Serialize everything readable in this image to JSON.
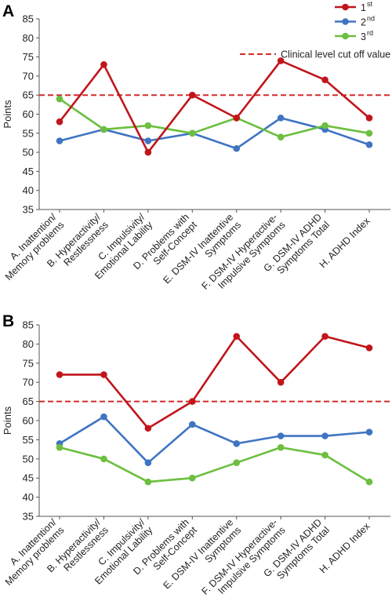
{
  "colors": {
    "series_1": "#c0161b",
    "series_2": "#3f74c2",
    "series_3": "#6cbf3f",
    "cutoff": "#d42a2a",
    "axis": "#555555"
  },
  "legend": {
    "items": [
      {
        "base": "1",
        "sup": "st"
      },
      {
        "base": "2",
        "sup": "nd"
      },
      {
        "base": "3",
        "sup": "rd"
      }
    ],
    "cutoff_label": "Clinical level cut off value"
  },
  "chart_data": [
    {
      "panel": "A",
      "type": "line",
      "ylabel": "Points",
      "ylim": [
        35,
        85
      ],
      "yticks": [
        35,
        40,
        45,
        50,
        55,
        60,
        65,
        70,
        75,
        80,
        85
      ],
      "cutoff": 65,
      "categories": [
        [
          "A. Inattention/",
          "Memory problems"
        ],
        [
          "B. Hyperactivity/",
          "Restlessness"
        ],
        [
          "C. Impulsivity/",
          "Emotional Lability"
        ],
        [
          "D. Problems with",
          "Self-Concept"
        ],
        [
          "E. DSM-IV Inattentive",
          "Symptoms"
        ],
        [
          "F. DSM-IV Hyperactive-",
          "Impulsive Symptoms"
        ],
        [
          "G. DSM-IV ADHD",
          "Symptoms Total"
        ],
        [
          "H. ADHD Index"
        ]
      ],
      "series": [
        {
          "key": "series_1",
          "values": [
            58,
            73,
            50,
            65,
            59,
            74,
            69,
            59
          ]
        },
        {
          "key": "series_2",
          "values": [
            53,
            56,
            53,
            55,
            51,
            59,
            56,
            52
          ]
        },
        {
          "key": "series_3",
          "values": [
            64,
            56,
            57,
            55,
            59,
            54,
            57,
            55
          ]
        }
      ]
    },
    {
      "panel": "B",
      "type": "line",
      "ylabel": "Points",
      "ylim": [
        35,
        85
      ],
      "yticks": [
        35,
        40,
        45,
        50,
        55,
        60,
        65,
        70,
        75,
        80,
        85
      ],
      "cutoff": 65,
      "categories": [
        [
          "A. Inattention/",
          "Memory problems"
        ],
        [
          "B. Hyperactivity/",
          "Restlessness"
        ],
        [
          "C. Impulsivity/",
          "Emotional Lability"
        ],
        [
          "D. Problems with",
          "Self-Concept"
        ],
        [
          "E. DSM-IV Inattentive",
          "Symptoms"
        ],
        [
          "F. DSM-IV Hyperactive-",
          "Impulsive Symptoms"
        ],
        [
          "G. DSM-IV ADHD",
          "Symptoms Total"
        ],
        [
          "H. ADHD Index"
        ]
      ],
      "series": [
        {
          "key": "series_1",
          "values": [
            72,
            72,
            58,
            65,
            82,
            70,
            82,
            79
          ]
        },
        {
          "key": "series_2",
          "values": [
            54,
            61,
            49,
            59,
            54,
            56,
            56,
            57
          ]
        },
        {
          "key": "series_3",
          "values": [
            53,
            50,
            44,
            45,
            49,
            53,
            51,
            44
          ]
        }
      ]
    }
  ]
}
